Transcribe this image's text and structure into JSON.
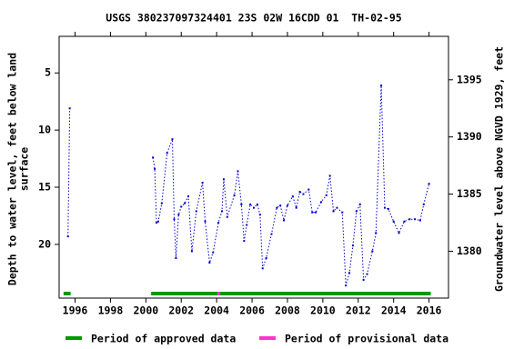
{
  "chart_data": {
    "type": "line",
    "title": "USGS 380237097324401 23S 02W 16CDD 01  TH-02-95",
    "y_label": [
      "Depth to water level, feet below land",
      "surface"
    ],
    "y2_label": "Groundwater level above NGVD 1929, feet",
    "x": [
      1995.6,
      1995.7,
      null,
      2000.4,
      2000.5,
      2000.6,
      2000.7,
      2000.9,
      2001.2,
      2001.5,
      2001.6,
      2001.7,
      2001.85,
      2002.0,
      2002.2,
      2002.4,
      2002.6,
      2002.85,
      2003.2,
      2003.35,
      2003.6,
      2003.8,
      2004.1,
      2004.3,
      2004.4,
      2004.6,
      2005.0,
      2005.2,
      2005.4,
      2005.55,
      2005.7,
      2005.9,
      2006.1,
      2006.3,
      2006.45,
      2006.6,
      2006.8,
      2007.1,
      2007.4,
      2007.6,
      2007.8,
      2008.0,
      2008.3,
      2008.5,
      2008.7,
      2008.9,
      2009.2,
      2009.4,
      2009.6,
      2009.9,
      2010.2,
      2010.4,
      2010.6,
      2010.8,
      2011.1,
      2011.3,
      2011.5,
      2011.7,
      2011.9,
      2012.1,
      2012.3,
      2012.5,
      2012.8,
      2013.0,
      2013.3,
      2013.5,
      2013.7,
      2014.0,
      2014.3,
      2014.6,
      2014.9,
      2015.2,
      2015.5,
      2015.7,
      2016.0
    ],
    "series": [
      {
        "color": "#0000cc",
        "values": [
          19.3,
          8.1,
          null,
          12.4,
          13.4,
          18.1,
          18.0,
          16.4,
          12.0,
          10.8,
          17.8,
          21.2,
          17.4,
          16.7,
          16.4,
          15.8,
          20.6,
          17.1,
          14.6,
          18.0,
          21.6,
          20.7,
          18.1,
          17.1,
          14.3,
          17.6,
          15.7,
          13.6,
          16.5,
          19.7,
          18.3,
          16.5,
          16.8,
          16.5,
          17.4,
          22.1,
          21.2,
          19.1,
          16.8,
          16.6,
          17.9,
          16.6,
          15.8,
          16.8,
          15.4,
          15.6,
          15.2,
          17.2,
          17.2,
          16.3,
          15.7,
          14.0,
          17.1,
          16.8,
          17.2,
          23.6,
          22.5,
          20.1,
          17.1,
          16.5,
          23.1,
          22.6,
          20.6,
          19.0,
          6.1,
          16.8,
          16.9,
          18.0,
          19.0,
          18.0,
          17.8,
          17.8,
          17.9,
          16.5,
          14.7
        ]
      }
    ],
    "xlim": [
      1995.1,
      2017.1
    ],
    "xticks": [
      1996,
      1998,
      2000,
      2002,
      2004,
      2006,
      2008,
      2010,
      2012,
      2014,
      2016
    ],
    "ylim": [
      24.7,
      1.8
    ],
    "yticks": [
      5,
      10,
      15,
      20
    ],
    "y2lim": [
      1375.9,
      1398.8
    ],
    "y2ticks": [
      1380,
      1385,
      1390,
      1395
    ],
    "periods": [
      {
        "name": "Period of approved data",
        "color": "#009900",
        "spans": [
          [
            1995.35,
            1995.75
          ],
          [
            2000.3,
            2004.05
          ],
          [
            2004.2,
            2016.1
          ]
        ]
      },
      {
        "name": "Period of provisional data",
        "color": "#ff33cc",
        "spans": [
          [
            2004.05,
            2004.2
          ]
        ]
      }
    ]
  }
}
